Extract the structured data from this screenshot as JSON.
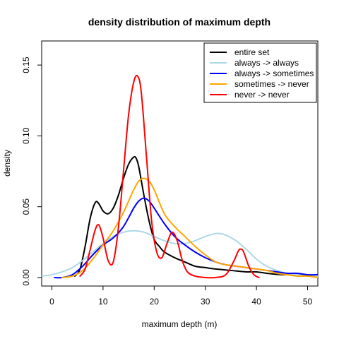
{
  "chart_data": {
    "type": "line",
    "title": "density distribution of maximum depth",
    "xlabel": "maximum depth (m)",
    "ylabel": "density",
    "xlim": [
      -2,
      52
    ],
    "ylim": [
      -0.006,
      0.167
    ],
    "xticks": [
      0,
      10,
      20,
      30,
      40,
      50
    ],
    "xtick_labels": [
      "0",
      "10",
      "20",
      "30",
      "40",
      "50"
    ],
    "yticks": [
      0.0,
      0.05,
      0.1,
      0.15
    ],
    "ytick_labels": [
      "0.00",
      "0.05",
      "0.10",
      "0.15"
    ],
    "grid": false,
    "legend_position": "top-right",
    "series": [
      {
        "name": "entire set",
        "color": "#000000",
        "x": [
          4.5,
          5.5,
          6.5,
          7.5,
          8.5,
          9.2,
          10,
          11,
          12,
          13,
          14,
          15,
          16,
          16.5,
          17,
          18,
          19,
          20,
          21,
          22,
          24,
          26,
          28,
          30,
          32,
          35,
          38,
          40,
          42,
          45,
          48,
          52
        ],
        "y": [
          0.001,
          0.006,
          0.022,
          0.042,
          0.053,
          0.052,
          0.047,
          0.045,
          0.049,
          0.058,
          0.07,
          0.08,
          0.085,
          0.084,
          0.078,
          0.058,
          0.04,
          0.027,
          0.022,
          0.018,
          0.014,
          0.011,
          0.008,
          0.007,
          0.006,
          0.005,
          0.004,
          0.004,
          0.003,
          0.002,
          0.002,
          0.001
        ]
      },
      {
        "name": "always -> always",
        "color": "#add8e6",
        "x": [
          -2,
          0,
          2,
          4,
          6,
          8,
          10,
          12,
          14,
          16,
          18,
          20,
          22,
          24,
          26,
          28,
          30,
          32,
          33,
          34,
          36,
          38,
          40,
          42,
          44,
          46,
          48,
          50,
          52
        ],
        "y": [
          0.001,
          0.002,
          0.004,
          0.007,
          0.012,
          0.018,
          0.024,
          0.029,
          0.032,
          0.033,
          0.032,
          0.029,
          0.026,
          0.024,
          0.024,
          0.026,
          0.029,
          0.031,
          0.031,
          0.03,
          0.026,
          0.02,
          0.013,
          0.008,
          0.005,
          0.003,
          0.002,
          0.001,
          0.001
        ]
      },
      {
        "name": "always -> sometimes",
        "color": "#0000ff",
        "x": [
          0.5,
          2,
          4,
          6,
          8,
          10,
          12,
          14,
          16,
          17,
          18,
          19,
          20,
          22,
          24,
          26,
          28,
          30,
          32,
          34,
          36,
          38,
          40,
          42,
          44,
          46,
          48,
          50,
          52
        ],
        "y": [
          0.0,
          0.0,
          0.002,
          0.008,
          0.016,
          0.023,
          0.028,
          0.036,
          0.049,
          0.054,
          0.056,
          0.054,
          0.049,
          0.038,
          0.029,
          0.023,
          0.018,
          0.014,
          0.011,
          0.009,
          0.008,
          0.007,
          0.006,
          0.005,
          0.004,
          0.003,
          0.003,
          0.002,
          0.002
        ]
      },
      {
        "name": "sometimes -> never",
        "color": "#ffa500",
        "x": [
          2,
          4,
          6,
          8,
          10,
          12,
          14,
          16,
          17,
          18,
          19,
          20,
          22,
          24,
          26,
          28,
          30,
          32,
          34,
          36,
          38,
          40,
          42,
          44,
          46,
          48,
          50,
          52
        ],
        "y": [
          0.0,
          0.001,
          0.005,
          0.013,
          0.023,
          0.033,
          0.046,
          0.062,
          0.068,
          0.07,
          0.068,
          0.062,
          0.045,
          0.036,
          0.029,
          0.022,
          0.016,
          0.011,
          0.009,
          0.008,
          0.007,
          0.006,
          0.005,
          0.003,
          0.002,
          0.001,
          0.001,
          0.0
        ]
      },
      {
        "name": "never -> never",
        "color": "#ff0000",
        "x": [
          5.5,
          6.5,
          7.5,
          8.5,
          9.2,
          10,
          11,
          12,
          13,
          14,
          15,
          16,
          16.8,
          17.5,
          18.5,
          19.5,
          20.5,
          21.5,
          22.5,
          23.5,
          24.5,
          25.5,
          26.5,
          28,
          30,
          32,
          34,
          35.5,
          36.5,
          37,
          37.5,
          38.5,
          39.5,
          40.5
        ],
        "y": [
          0.001,
          0.006,
          0.02,
          0.034,
          0.037,
          0.028,
          0.012,
          0.011,
          0.035,
          0.075,
          0.115,
          0.138,
          0.142,
          0.13,
          0.085,
          0.04,
          0.018,
          0.014,
          0.024,
          0.032,
          0.026,
          0.012,
          0.004,
          0.001,
          0.0,
          0.0,
          0.002,
          0.011,
          0.019,
          0.02,
          0.018,
          0.008,
          0.002,
          0.0
        ]
      }
    ]
  }
}
